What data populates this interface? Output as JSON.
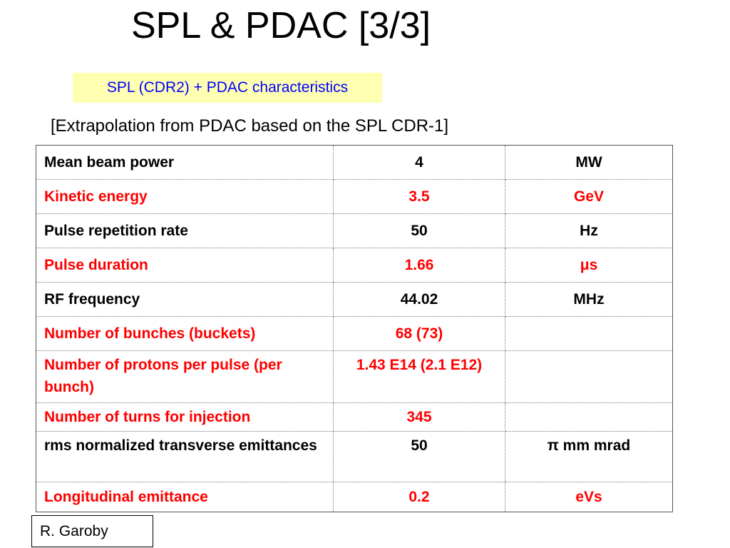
{
  "title": "SPL & PDAC [3/3]",
  "subtitle": "SPL (CDR2) + PDAC characteristics",
  "note": "[Extrapolation from PDAC based on the SPL CDR-1]",
  "table": {
    "rows": [
      {
        "param": "Mean beam power",
        "value": "4",
        "unit": "MW",
        "highlight": false
      },
      {
        "param": "Kinetic energy",
        "value": "3.5",
        "unit": "GeV",
        "highlight": true
      },
      {
        "param": "Pulse repetition rate",
        "value": "50",
        "unit": "Hz",
        "highlight": false
      },
      {
        "param": "Pulse duration",
        "value": "1.66",
        "unit": "μs",
        "highlight": true
      },
      {
        "param": "RF frequency",
        "value": "44.02",
        "unit": "MHz",
        "highlight": false
      },
      {
        "param": "Number of bunches (buckets)",
        "value": "68 (73)",
        "unit": "",
        "highlight": true
      },
      {
        "param": "Number of protons per pulse (per bunch)",
        "value": "1.43 E14 (2.1 E12)",
        "unit": "",
        "highlight": true
      },
      {
        "param": "Number of turns for injection",
        "value": "345",
        "unit": "",
        "highlight": true
      },
      {
        "param": "rms normalized transverse emittances",
        "value": "50",
        "unit": "π mm mrad",
        "highlight": false
      },
      {
        "param": "Longitudinal emittance",
        "value": "0.2",
        "unit": "eVs",
        "highlight": true
      }
    ]
  },
  "author": "R. Garoby",
  "colors": {
    "highlight_text": "#ff0000",
    "subtitle_text": "#0000ff",
    "subtitle_bg": "#ffffb2"
  }
}
